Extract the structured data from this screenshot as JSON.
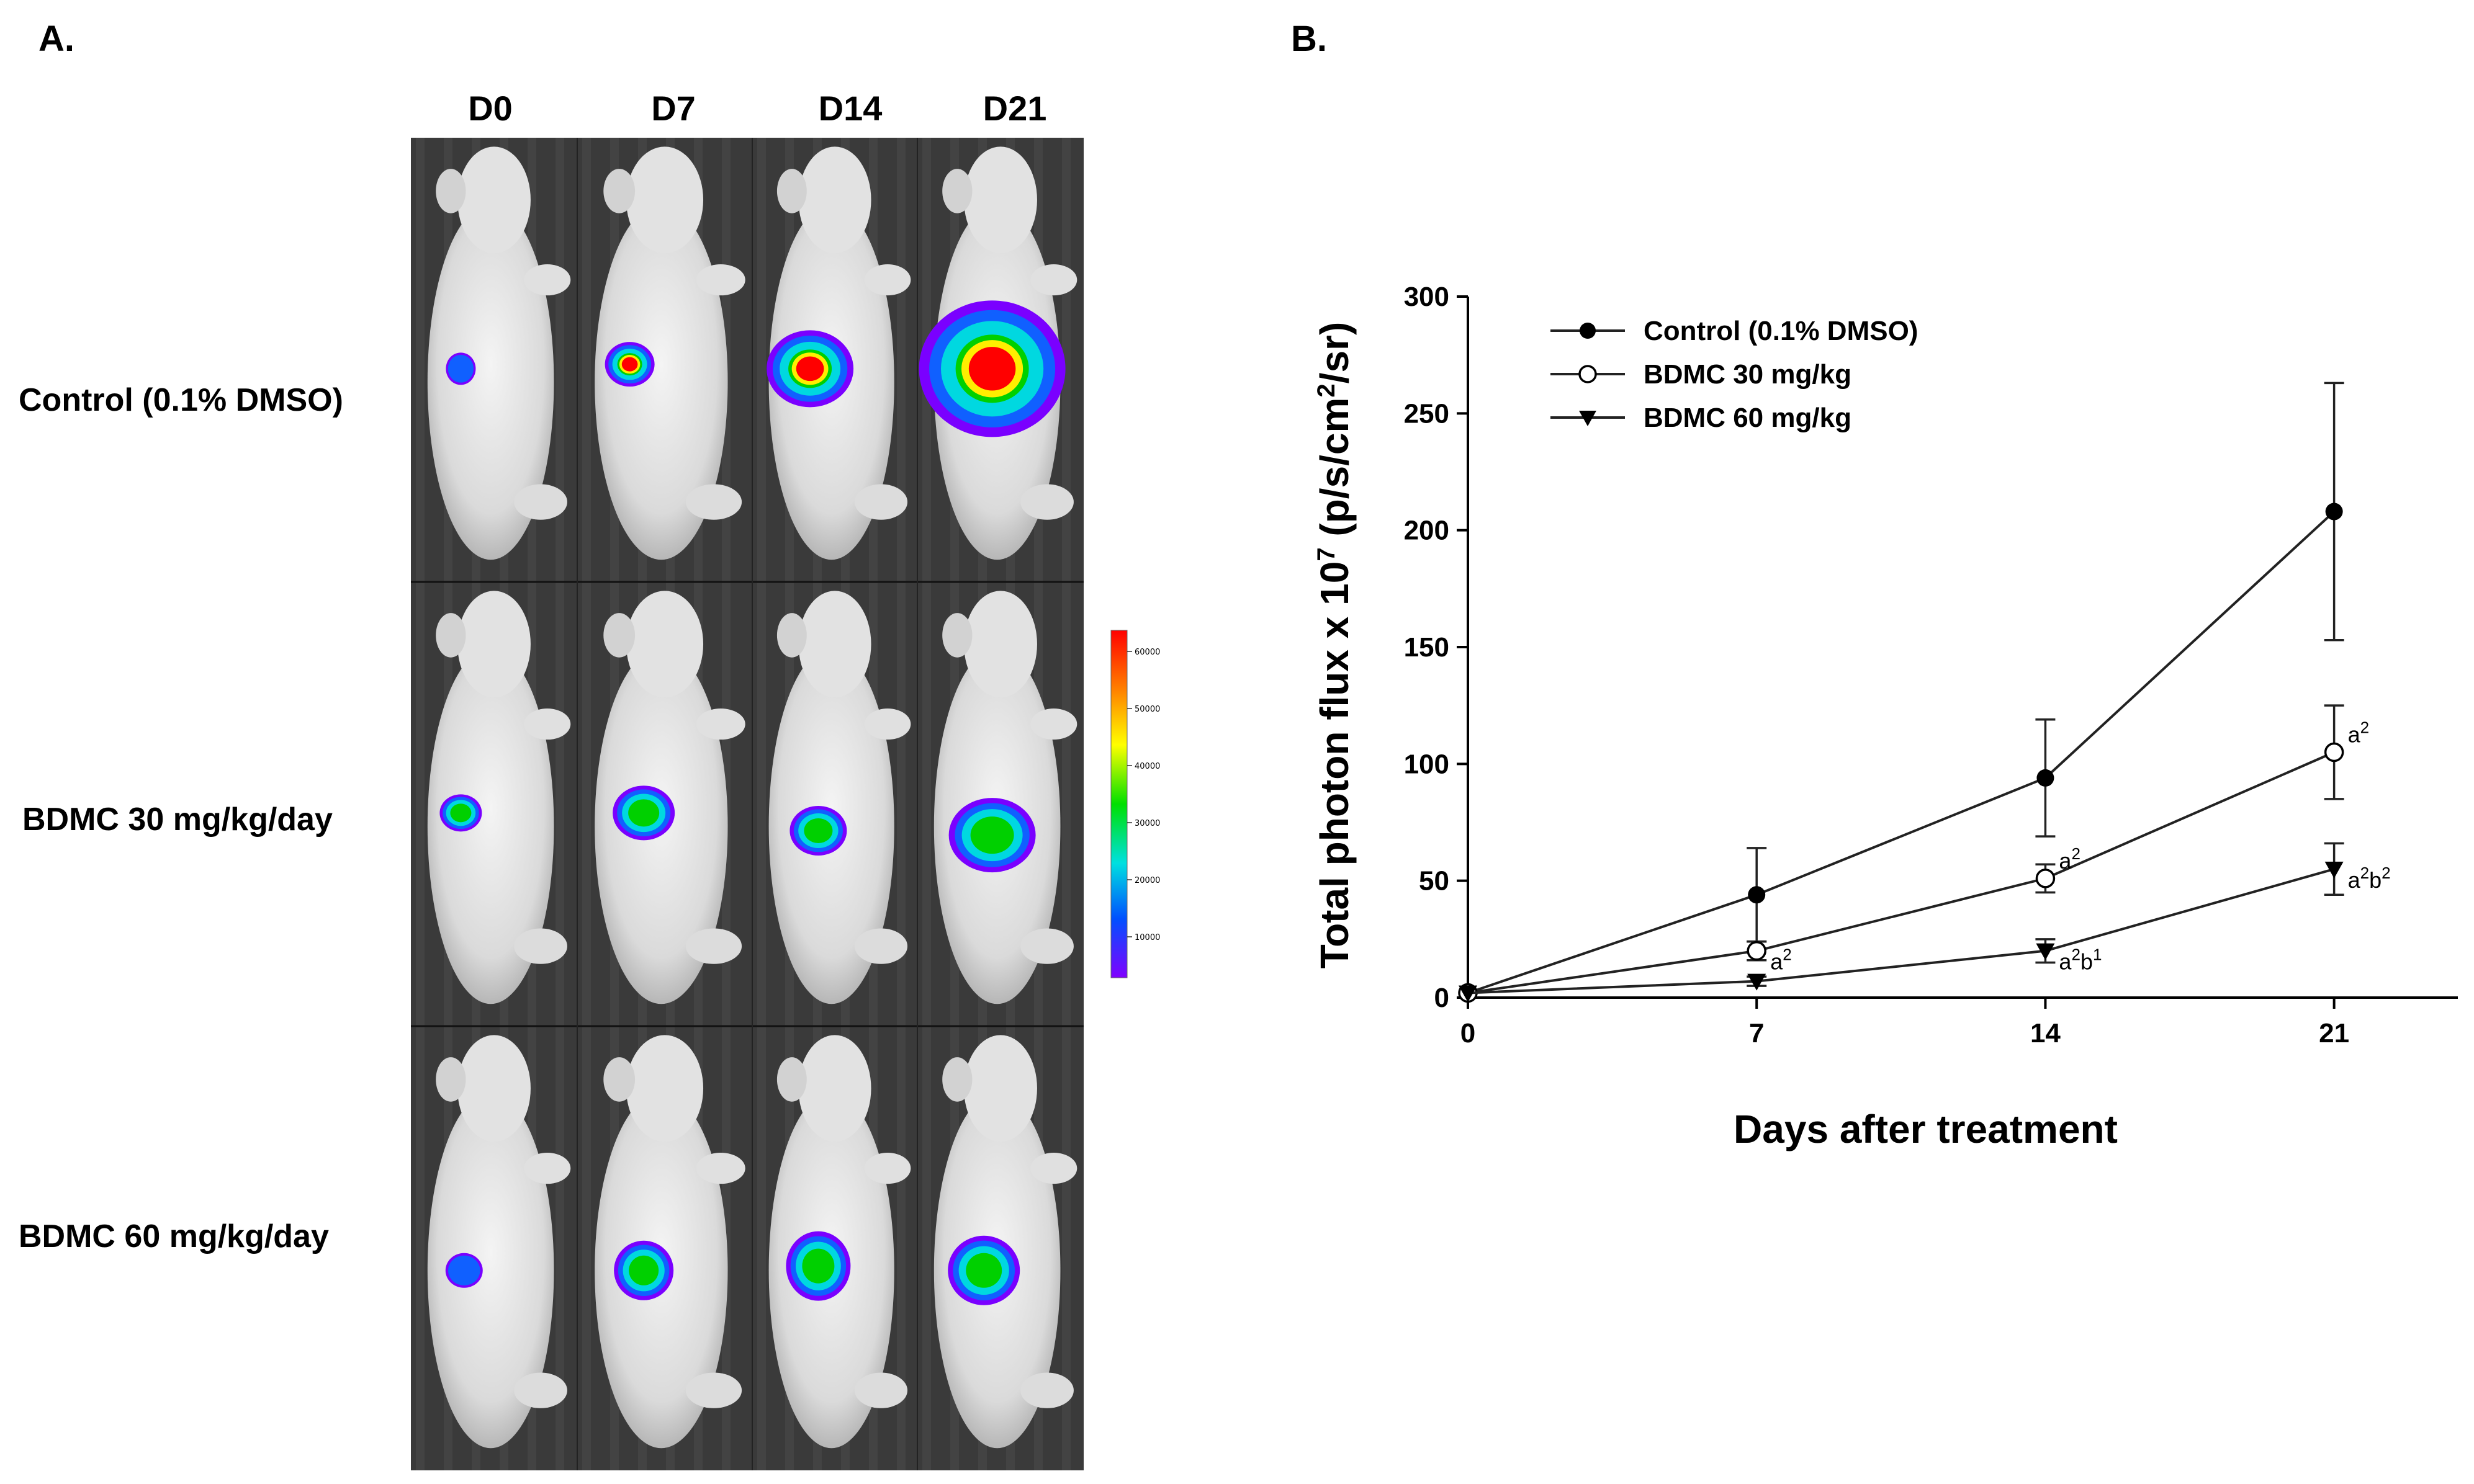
{
  "panel_a": {
    "label": "A.",
    "columns": [
      "D0",
      "D7",
      "D14",
      "D21"
    ],
    "rows": [
      "Control (0.1% DMSO)",
      "BDMC 30 mg/kg/day",
      "BDMC 60 mg/kg/day"
    ],
    "colorbar_ticks": [
      "60000",
      "50000",
      "40000",
      "30000",
      "20000",
      "10000"
    ],
    "colorbar_colors": [
      "#ff0000",
      "#ff8000",
      "#ffff00",
      "#00e000",
      "#00e0e0",
      "#0050ff",
      "#8000ff"
    ]
  },
  "panel_b": {
    "label": "B."
  },
  "chart_data": {
    "type": "line",
    "x": [
      0,
      7,
      14,
      21
    ],
    "xticks": [
      "0",
      "7",
      "14",
      "21"
    ],
    "yticks": [
      "0",
      "50",
      "100",
      "150",
      "200",
      "250",
      "300"
    ],
    "xlabel": "Days after treatment",
    "ylabel_parts": {
      "main": "Total photon flux x 10",
      "sup1": "7",
      "mid": " (p/s/cm",
      "sup2": "2",
      "end": "/sr)"
    },
    "ylim": [
      0,
      300
    ],
    "xlim": [
      0,
      24
    ],
    "legend_position": "top-left",
    "series": [
      {
        "name": "Control (0.1%  DMSO)",
        "marker": "filled-circle",
        "values": [
          2,
          44,
          94,
          208
        ],
        "errors": [
          0,
          20,
          25,
          55
        ]
      },
      {
        "name": "BDMC 30 mg/kg",
        "marker": "open-circle",
        "values": [
          2,
          20,
          51,
          105
        ],
        "errors": [
          0,
          4,
          6,
          20
        ]
      },
      {
        "name": "BDMC 60 mg/kg",
        "marker": "filled-triangle-down",
        "values": [
          2,
          7,
          20,
          55
        ],
        "errors": [
          0,
          2,
          5,
          11
        ]
      }
    ],
    "annotations": [
      {
        "x": 7,
        "y": 20,
        "series": 1,
        "base": "a",
        "sup": "2",
        "base2": "",
        "sup2": ""
      },
      {
        "x": 14,
        "y": 51,
        "series": 1,
        "base": "a",
        "sup": "2",
        "base2": "",
        "sup2": ""
      },
      {
        "x": 21,
        "y": 105,
        "series": 1,
        "base": "a",
        "sup": "2",
        "base2": "",
        "sup2": ""
      },
      {
        "x": 14,
        "y": 20,
        "series": 2,
        "base": "a",
        "sup": "2",
        "base2": "b",
        "sup2": "1"
      },
      {
        "x": 21,
        "y": 55,
        "series": 2,
        "base": "a",
        "sup": "2",
        "base2": "b",
        "sup2": "2"
      }
    ]
  }
}
